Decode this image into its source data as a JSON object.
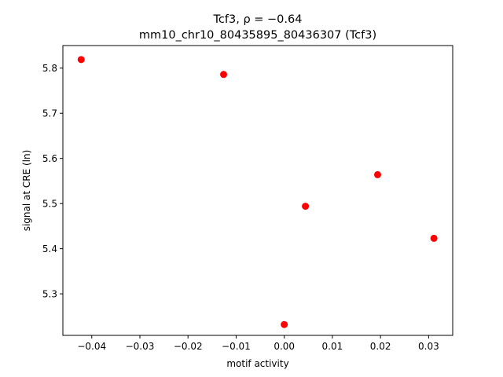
{
  "chart_data": {
    "type": "scatter",
    "title_line1": "Tcf3, ρ = −0.64",
    "title_line2": "mm10_chr10_80435895_80436307 (Tcf3)",
    "xlabel": "motif activity",
    "ylabel": "signal at CRE (ln)",
    "xlim": [
      -0.046,
      0.035
    ],
    "ylim": [
      5.208,
      5.85
    ],
    "xticks": [
      -0.04,
      -0.03,
      -0.02,
      -0.01,
      0.0,
      0.01,
      0.02,
      0.03
    ],
    "xtick_labels": [
      "−0.04",
      "−0.03",
      "−0.02",
      "−0.01",
      "0.00",
      "0.01",
      "0.02",
      "0.03"
    ],
    "yticks": [
      5.3,
      5.4,
      5.5,
      5.6,
      5.7,
      5.8
    ],
    "ytick_labels": [
      "5.3",
      "5.4",
      "5.5",
      "5.6",
      "5.7",
      "5.8"
    ],
    "point_color": "#ff0000",
    "grid": false,
    "points": [
      {
        "x": -0.0422,
        "y": 5.819
      },
      {
        "x": -0.0126,
        "y": 5.786
      },
      {
        "x": 0.0,
        "y": 5.232
      },
      {
        "x": 0.0044,
        "y": 5.494
      },
      {
        "x": 0.0194,
        "y": 5.564
      },
      {
        "x": 0.0311,
        "y": 5.423
      }
    ]
  }
}
